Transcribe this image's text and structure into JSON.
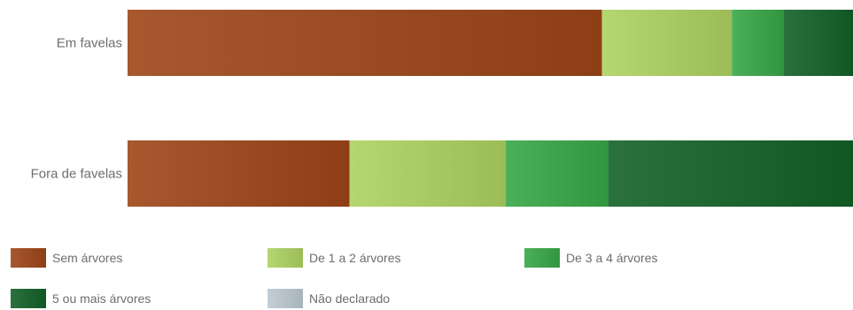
{
  "chart_data": {
    "type": "bar",
    "orientation": "horizontal",
    "stacked": true,
    "percent_stacked": true,
    "categories": [
      "Em favelas",
      "Fora de favelas"
    ],
    "series": [
      {
        "name": "Sem árvores",
        "values": [
          65.4,
          30.6
        ],
        "color": "#9a4a20"
      },
      {
        "name": "De 1 a 2 árvores",
        "values": [
          17.9,
          21.5
        ],
        "color": "#a8c864"
      },
      {
        "name": "De 3 a 4 árvores",
        "values": [
          7.1,
          14.2
        ],
        "color": "#3ea24c"
      },
      {
        "name": "5 ou mais árvores",
        "values": [
          9.6,
          33.7
        ],
        "color": "#1d6330"
      },
      {
        "name": "Não declarado",
        "values": [
          0,
          0
        ],
        "color": "#b5c0c8"
      }
    ],
    "xlim": [
      0,
      100
    ],
    "grid": false,
    "legend_position": "bottom"
  }
}
